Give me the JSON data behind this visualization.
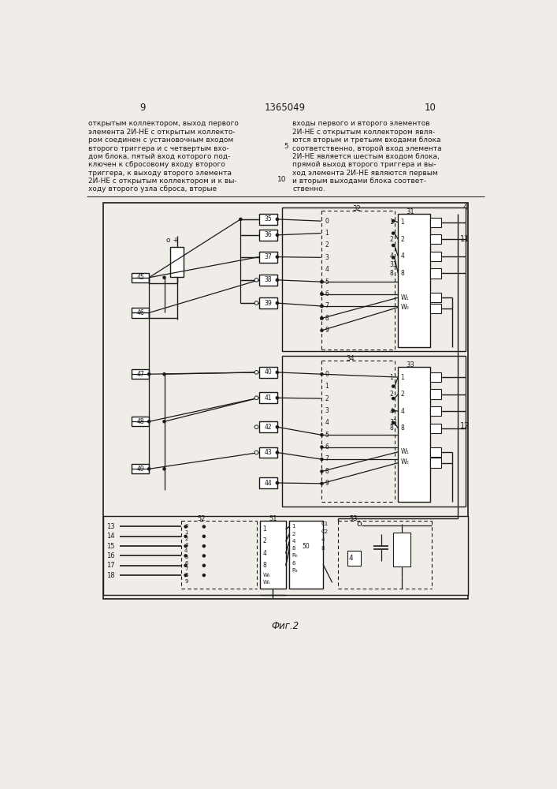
{
  "bg_color": "#f0ede8",
  "line_color": "#1a1a1a",
  "text_left": [
    "открытым коллектором, выход первого",
    "элемента 2И-НЕ с открытым коллекто-",
    "ром соединен с установочным входом",
    "второго триггера и с четвертым вхо-",
    "дом блока, пятый вход которого под-",
    "ключен к сбросовому входу второго",
    "триггера, к выходу второго элемента",
    "2И-НЕ с открытым коллектором и к вы-",
    "ходу второго узла сброса, вторые"
  ],
  "text_right": [
    "входы первого и второго элементов",
    "2И-НЕ с открытым коллектором явля-",
    "ются вторым и третьим входами блока",
    "соответственно, второй вход элемента",
    "2И-НЕ является шестым входом блока,",
    "прямой выход второго триггера и вы-",
    "ход элемента 2И-НЕ являются первым",
    "и вторым выходами блока соответ-",
    "ственно."
  ],
  "caption": "Фиг.2",
  "page_left": "9",
  "page_center": "1365049",
  "page_right": "10",
  "line_num_5": "5",
  "line_num_10": "10"
}
